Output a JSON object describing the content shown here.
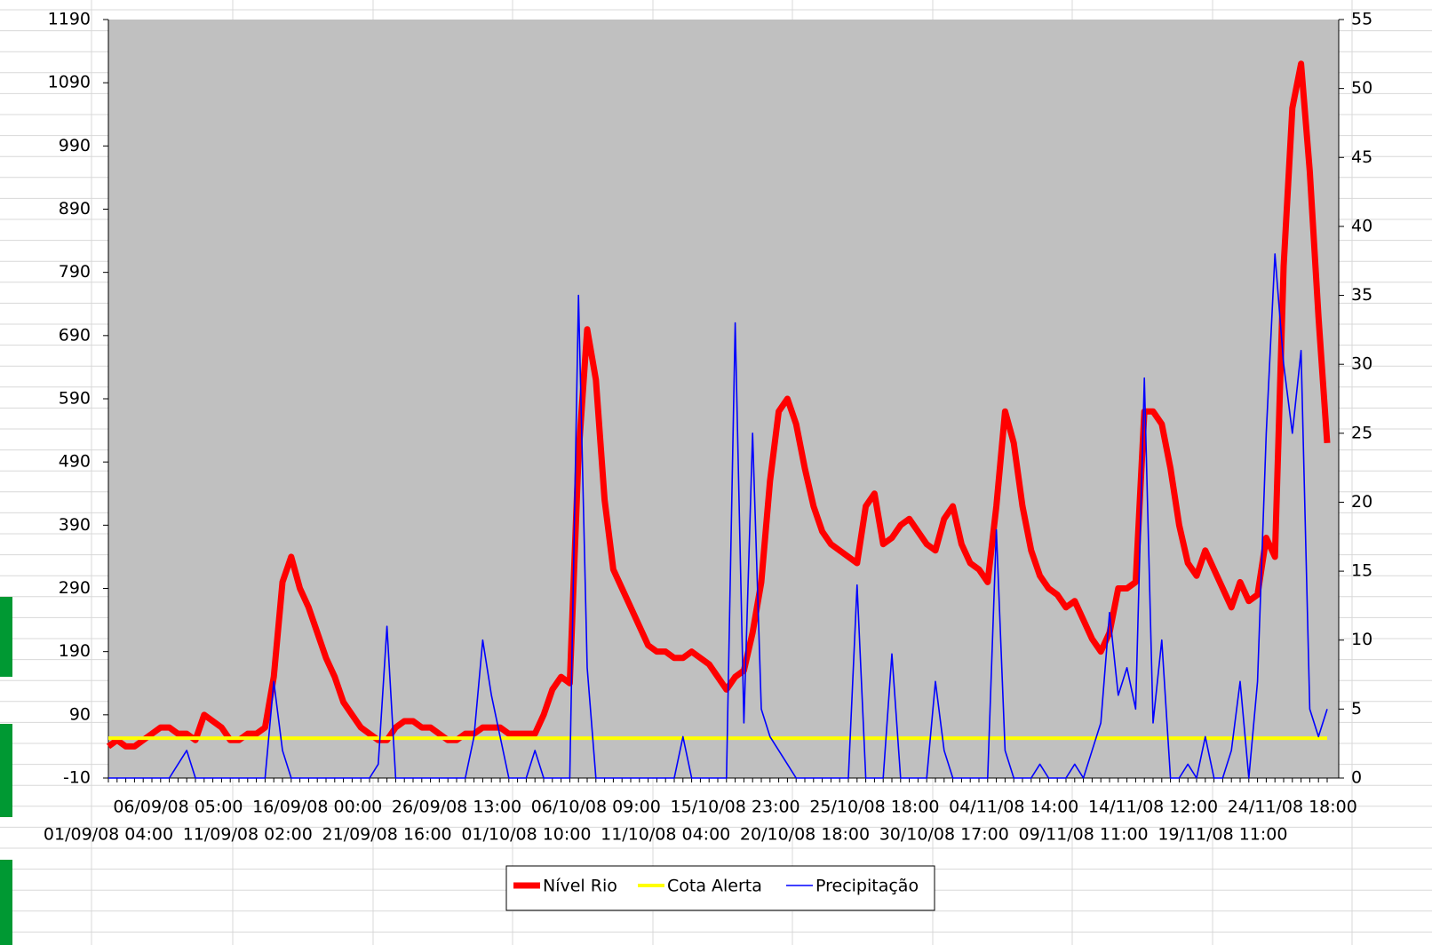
{
  "chart_data": {
    "type": "line",
    "categories": [
      "01/09/08 04:00",
      null,
      null,
      null,
      null,
      null,
      null,
      null,
      "06/09/08 05:00",
      null,
      null,
      null,
      null,
      null,
      null,
      null,
      "11/09/08 02:00",
      null,
      null,
      null,
      null,
      null,
      null,
      null,
      "16/09/08 00:00",
      null,
      null,
      null,
      null,
      null,
      null,
      null,
      "21/09/08 16:00",
      null,
      null,
      null,
      null,
      null,
      null,
      null,
      "26/09/08 13:00",
      null,
      null,
      null,
      null,
      null,
      null,
      null,
      "01/10/08 10:00",
      null,
      null,
      null,
      null,
      null,
      null,
      null,
      "06/10/08 09:00",
      null,
      null,
      null,
      null,
      null,
      null,
      null,
      "11/10/08 04:00",
      null,
      null,
      null,
      null,
      null,
      null,
      null,
      "15/10/08 23:00",
      null,
      null,
      null,
      null,
      null,
      null,
      null,
      "20/10/08 18:00",
      null,
      null,
      null,
      null,
      null,
      null,
      null,
      "25/10/08 18:00",
      null,
      null,
      null,
      null,
      null,
      null,
      null,
      "30/10/08 17:00",
      null,
      null,
      null,
      null,
      null,
      null,
      null,
      "04/11/08 14:00",
      null,
      null,
      null,
      null,
      null,
      null,
      null,
      "09/11/08 11:00",
      null,
      null,
      null,
      null,
      null,
      null,
      null,
      "14/11/08 12:00",
      null,
      null,
      null,
      null,
      null,
      null,
      null,
      "19/11/08 11:00",
      null,
      null,
      null,
      null,
      null,
      null,
      null,
      "24/11/08 18:00",
      null,
      null,
      null,
      null
    ],
    "series": [
      {
        "name": "Nível Rio",
        "color": "#ff0000",
        "values": [
          40,
          50,
          40,
          40,
          50,
          60,
          70,
          70,
          60,
          60,
          50,
          90,
          80,
          70,
          50,
          50,
          60,
          60,
          70,
          150,
          300,
          340,
          290,
          260,
          220,
          180,
          150,
          110,
          90,
          70,
          60,
          50,
          50,
          70,
          80,
          80,
          70,
          70,
          60,
          50,
          50,
          60,
          60,
          70,
          70,
          70,
          60,
          60,
          60,
          60,
          90,
          130,
          150,
          140,
          500,
          700,
          620,
          430,
          320,
          290,
          260,
          230,
          200,
          190,
          190,
          180,
          180,
          190,
          180,
          170,
          150,
          130,
          150,
          160,
          220,
          300,
          460,
          570,
          590,
          550,
          480,
          420,
          380,
          360,
          350,
          340,
          330,
          420,
          440,
          360,
          370,
          390,
          400,
          380,
          360,
          350,
          400,
          420,
          360,
          330,
          320,
          300,
          420,
          570,
          520,
          420,
          350,
          310,
          290,
          280,
          260,
          270,
          240,
          210,
          190,
          220,
          290,
          290,
          300,
          570,
          570,
          550,
          480,
          390,
          330,
          310,
          350,
          320,
          290,
          260,
          300,
          270,
          280,
          370,
          340,
          800,
          1050,
          1120,
          950,
          720,
          520
        ]
      },
      {
        "name": "Cota Alerta",
        "color": "#ffff00",
        "values": [
          53,
          53,
          53,
          53,
          53,
          53,
          53,
          53,
          53,
          53,
          53,
          53,
          53,
          53,
          53,
          53,
          53,
          53,
          53,
          53,
          53,
          53,
          53,
          53,
          53,
          53,
          53,
          53,
          53,
          53,
          53,
          53,
          53,
          53,
          53,
          53,
          53,
          53,
          53,
          53,
          53,
          53,
          53,
          53,
          53,
          53,
          53,
          53,
          53,
          53,
          53,
          53,
          53,
          53,
          53,
          53,
          53,
          53,
          53,
          53,
          53,
          53,
          53,
          53,
          53,
          53,
          53,
          53,
          53,
          53,
          53,
          53,
          53,
          53,
          53,
          53,
          53,
          53,
          53,
          53,
          53,
          53,
          53,
          53,
          53,
          53,
          53,
          53,
          53,
          53,
          53,
          53,
          53,
          53,
          53,
          53,
          53,
          53,
          53,
          53,
          53,
          53,
          53,
          53,
          53,
          53,
          53,
          53,
          53,
          53,
          53,
          53,
          53,
          53,
          53,
          53,
          53,
          53,
          53,
          53,
          53,
          53,
          53,
          53,
          53,
          53,
          53,
          53,
          53,
          53,
          53,
          53,
          53,
          53,
          53,
          53,
          53,
          53,
          53,
          53,
          53
        ]
      },
      {
        "name": "Precipitação",
        "color": "#0000ff",
        "axis": "y2",
        "values": [
          0,
          0,
          0,
          0,
          0,
          0,
          0,
          0,
          1,
          2,
          0,
          0,
          0,
          0,
          0,
          0,
          0,
          0,
          0,
          7,
          2,
          0,
          0,
          0,
          0,
          0,
          0,
          0,
          0,
          0,
          0,
          1,
          11,
          0,
          0,
          0,
          0,
          0,
          0,
          0,
          0,
          0,
          3,
          10,
          6,
          3,
          0,
          0,
          0,
          2,
          0,
          0,
          0,
          0,
          35,
          8,
          0,
          0,
          0,
          0,
          0,
          0,
          0,
          0,
          0,
          0,
          3,
          0,
          0,
          0,
          0,
          0,
          33,
          4,
          25,
          5,
          3,
          2,
          1,
          0,
          0,
          0,
          0,
          0,
          0,
          0,
          14,
          0,
          0,
          0,
          9,
          0,
          0,
          0,
          0,
          7,
          2,
          0,
          0,
          0,
          0,
          0,
          18,
          2,
          0,
          0,
          0,
          1,
          0,
          0,
          0,
          1,
          0,
          2,
          4,
          12,
          6,
          8,
          5,
          29,
          4,
          10,
          0,
          0,
          1,
          0,
          3,
          0,
          0,
          2,
          7,
          0,
          7,
          25,
          38,
          30,
          25,
          31,
          5,
          3,
          5
        ]
      }
    ],
    "ylim": [
      -10,
      1190
    ],
    "yticks": [
      -10,
      90,
      190,
      290,
      390,
      490,
      590,
      690,
      790,
      890,
      990,
      1090,
      1190
    ],
    "y2lim": [
      0,
      55
    ],
    "y2ticks": [
      0,
      5,
      10,
      15,
      20,
      25,
      30,
      35,
      40,
      45,
      50,
      55
    ],
    "legend": "bottom",
    "background": "#c0c0c0"
  }
}
